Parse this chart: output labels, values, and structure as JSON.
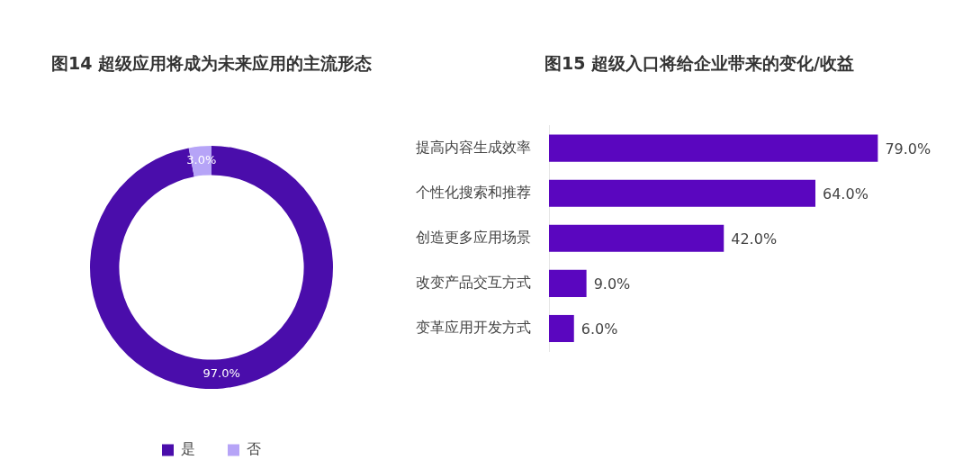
{
  "chart_data": [
    {
      "type": "donut",
      "title": "图14 超级应用将成为未来应用的主流形态",
      "categories": [
        "是",
        "否"
      ],
      "values": [
        97,
        3
      ],
      "colors": [
        "#4a0dab",
        "#b6a4f7"
      ],
      "value_labels": [
        "97.0%",
        "3.0%"
      ],
      "legend": "bottom"
    },
    {
      "type": "bar",
      "orientation": "horizontal",
      "title": "图15 超级入口将给企业带来的变化/收益",
      "categories": [
        "提高内容生成效率",
        "个性化搜索和推荐",
        "创造更多应用场景",
        "改变产品交互方式",
        "变革应用开发方式"
      ],
      "values": [
        79,
        64,
        42,
        9,
        6
      ],
      "color": "#5a06bf",
      "value_labels": [
        "79.0%",
        "64.0%",
        "42.0%",
        "9.0%",
        "6.0%"
      ],
      "legend": false
    }
  ]
}
